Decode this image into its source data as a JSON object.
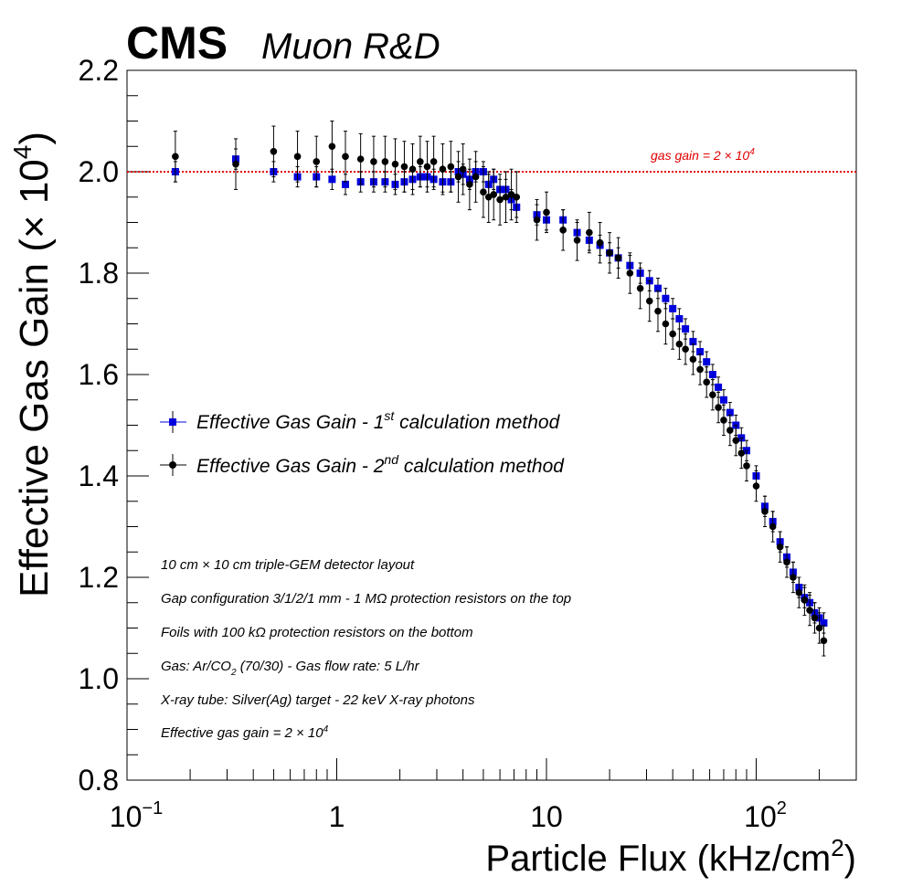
{
  "header": {
    "experiment": "CMS",
    "subtitle": "Muon R&D"
  },
  "chart_data": {
    "type": "scatter",
    "xscale": "log",
    "xlim": [
      0.1,
      300
    ],
    "ylim": [
      0.8,
      2.2
    ],
    "xlabel": {
      "main": "Particle Flux (kHz/cm",
      "sup": "2",
      "tail": ")"
    },
    "ylabel": {
      "main": "Effective Gas Gain (× 10",
      "sup": "4",
      "tail": ")"
    },
    "x_ticks": [
      {
        "v": 0.1,
        "base": "10",
        "sup": "−1"
      },
      {
        "v": 1,
        "base": "1",
        "sup": ""
      },
      {
        "v": 10,
        "base": "10",
        "sup": ""
      },
      {
        "v": 100,
        "base": "10",
        "sup": "2"
      }
    ],
    "y_ticks": [
      "0.8",
      "1.0",
      "1.2",
      "1.4",
      "1.6",
      "1.8",
      "2.0",
      "2.2"
    ],
    "reference_line": {
      "y": 2.0,
      "label": "gas gain = 2 × 10",
      "sup": "4",
      "color": "#e00000"
    },
    "series": [
      {
        "name": "Effective Gas Gain - 1st calculation method",
        "legend_prefix": "Effective Gas Gain - 1",
        "legend_sup": "st",
        "legend_suffix": " calculation method",
        "marker": "square",
        "color": "#0000dd",
        "x": [
          0.17,
          0.33,
          0.5,
          0.65,
          0.8,
          0.95,
          1.1,
          1.3,
          1.5,
          1.7,
          1.9,
          2.1,
          2.3,
          2.5,
          2.7,
          2.9,
          3.2,
          3.5,
          3.8,
          4.0,
          4.3,
          4.6,
          5.0,
          5.3,
          5.6,
          6.0,
          6.4,
          6.8,
          7.2,
          9.0,
          10.0,
          12.0,
          14.0,
          16.0,
          18.0,
          20.0,
          22.0,
          25.0,
          28.0,
          31.0,
          34.0,
          37.0,
          40.0,
          43.0,
          46.0,
          50.0,
          54.0,
          58.0,
          62.0,
          66.0,
          70.0,
          75.0,
          80.0,
          85.0,
          90.0,
          100.0,
          110.0,
          120.0,
          130.0,
          140.0,
          150.0,
          160.0,
          170.0,
          180.0,
          190.0,
          200.0,
          210.0
        ],
        "y": [
          2.0,
          2.025,
          2.0,
          1.99,
          1.99,
          1.985,
          1.975,
          1.98,
          1.98,
          1.98,
          1.975,
          1.98,
          1.985,
          1.99,
          1.99,
          1.985,
          1.98,
          1.98,
          2.0,
          1.995,
          1.985,
          2.0,
          2.0,
          1.975,
          1.985,
          1.965,
          1.965,
          1.945,
          1.93,
          1.915,
          1.905,
          1.905,
          1.88,
          1.865,
          1.855,
          1.84,
          1.83,
          1.815,
          1.8,
          1.785,
          1.77,
          1.75,
          1.73,
          1.71,
          1.69,
          1.665,
          1.645,
          1.625,
          1.6,
          1.575,
          1.55,
          1.525,
          1.5,
          1.475,
          1.45,
          1.4,
          1.34,
          1.31,
          1.27,
          1.24,
          1.21,
          1.18,
          1.16,
          1.15,
          1.13,
          1.12,
          1.11
        ],
        "yerr": [
          0.02,
          0.02,
          0.02,
          0.02,
          0.02,
          0.02,
          0.02,
          0.02,
          0.02,
          0.02,
          0.02,
          0.02,
          0.02,
          0.02,
          0.02,
          0.02,
          0.02,
          0.02,
          0.02,
          0.02,
          0.02,
          0.02,
          0.02,
          0.02,
          0.02,
          0.02,
          0.02,
          0.02,
          0.02,
          0.02,
          0.02,
          0.02,
          0.02,
          0.02,
          0.02,
          0.02,
          0.02,
          0.02,
          0.02,
          0.02,
          0.02,
          0.02,
          0.02,
          0.02,
          0.02,
          0.02,
          0.02,
          0.02,
          0.02,
          0.02,
          0.02,
          0.02,
          0.02,
          0.02,
          0.02,
          0.02,
          0.02,
          0.02,
          0.02,
          0.02,
          0.02,
          0.02,
          0.02,
          0.02,
          0.02,
          0.02,
          0.02
        ]
      },
      {
        "name": "Effective Gas Gain - 2nd calculation method",
        "legend_prefix": "Effective Gas Gain - 2",
        "legend_sup": "nd",
        "legend_suffix": " calculation method",
        "marker": "circle",
        "color": "#000000",
        "x": [
          0.17,
          0.33,
          0.5,
          0.65,
          0.8,
          0.95,
          1.1,
          1.3,
          1.5,
          1.7,
          1.9,
          2.1,
          2.3,
          2.5,
          2.7,
          2.9,
          3.2,
          3.5,
          3.8,
          4.0,
          4.3,
          4.6,
          5.0,
          5.3,
          5.6,
          6.0,
          6.4,
          6.8,
          7.2,
          9.0,
          10.0,
          12.0,
          14.0,
          16.0,
          18.0,
          20.0,
          22.0,
          25.0,
          28.0,
          31.0,
          34.0,
          37.0,
          40.0,
          43.0,
          46.0,
          50.0,
          54.0,
          58.0,
          62.0,
          66.0,
          70.0,
          75.0,
          80.0,
          85.0,
          90.0,
          100.0,
          110.0,
          120.0,
          130.0,
          140.0,
          150.0,
          160.0,
          170.0,
          180.0,
          190.0,
          200.0,
          210.0
        ],
        "y": [
          2.03,
          2.015,
          2.04,
          2.03,
          2.02,
          2.05,
          2.03,
          2.025,
          2.02,
          2.02,
          2.015,
          2.01,
          2.005,
          2.02,
          2.01,
          2.02,
          2.005,
          2.01,
          1.99,
          2.005,
          1.975,
          1.99,
          1.96,
          1.95,
          1.955,
          1.945,
          1.95,
          1.955,
          1.95,
          1.905,
          1.92,
          1.885,
          1.865,
          1.88,
          1.86,
          1.84,
          1.83,
          1.8,
          1.77,
          1.745,
          1.725,
          1.7,
          1.68,
          1.66,
          1.65,
          1.63,
          1.61,
          1.585,
          1.56,
          1.535,
          1.51,
          1.49,
          1.47,
          1.445,
          1.42,
          1.38,
          1.33,
          1.3,
          1.26,
          1.23,
          1.2,
          1.17,
          1.155,
          1.135,
          1.12,
          1.1,
          1.075
        ],
        "yerr": [
          0.05,
          0.05,
          0.05,
          0.05,
          0.05,
          0.05,
          0.05,
          0.05,
          0.05,
          0.05,
          0.05,
          0.05,
          0.05,
          0.05,
          0.05,
          0.05,
          0.05,
          0.05,
          0.05,
          0.05,
          0.05,
          0.05,
          0.05,
          0.05,
          0.05,
          0.05,
          0.05,
          0.05,
          0.05,
          0.04,
          0.04,
          0.04,
          0.04,
          0.04,
          0.04,
          0.04,
          0.04,
          0.04,
          0.04,
          0.04,
          0.04,
          0.04,
          0.03,
          0.03,
          0.03,
          0.03,
          0.03,
          0.03,
          0.03,
          0.03,
          0.03,
          0.03,
          0.03,
          0.03,
          0.03,
          0.03,
          0.03,
          0.03,
          0.03,
          0.03,
          0.03,
          0.03,
          0.03,
          0.03,
          0.03,
          0.03,
          0.03
        ]
      }
    ],
    "annotations": [
      {
        "text": "10 cm × 10 cm triple-GEM detector layout"
      },
      {
        "text": "Gap configuration 3/1/2/1 mm - 1 MΩ protection resistors on the top"
      },
      {
        "text": "Foils with 100 kΩ protection resistors on the bottom"
      },
      {
        "pre": "Gas: Ar/CO",
        "sub": "2",
        "post": " (70/30) - Gas flow rate: 5 L/hr"
      },
      {
        "text": "X-ray tube: Silver(Ag) target - 22 keV X-ray photons"
      },
      {
        "pre": "Effective gas gain = 2 × 10",
        "sup": "4",
        "post": ""
      }
    ]
  }
}
